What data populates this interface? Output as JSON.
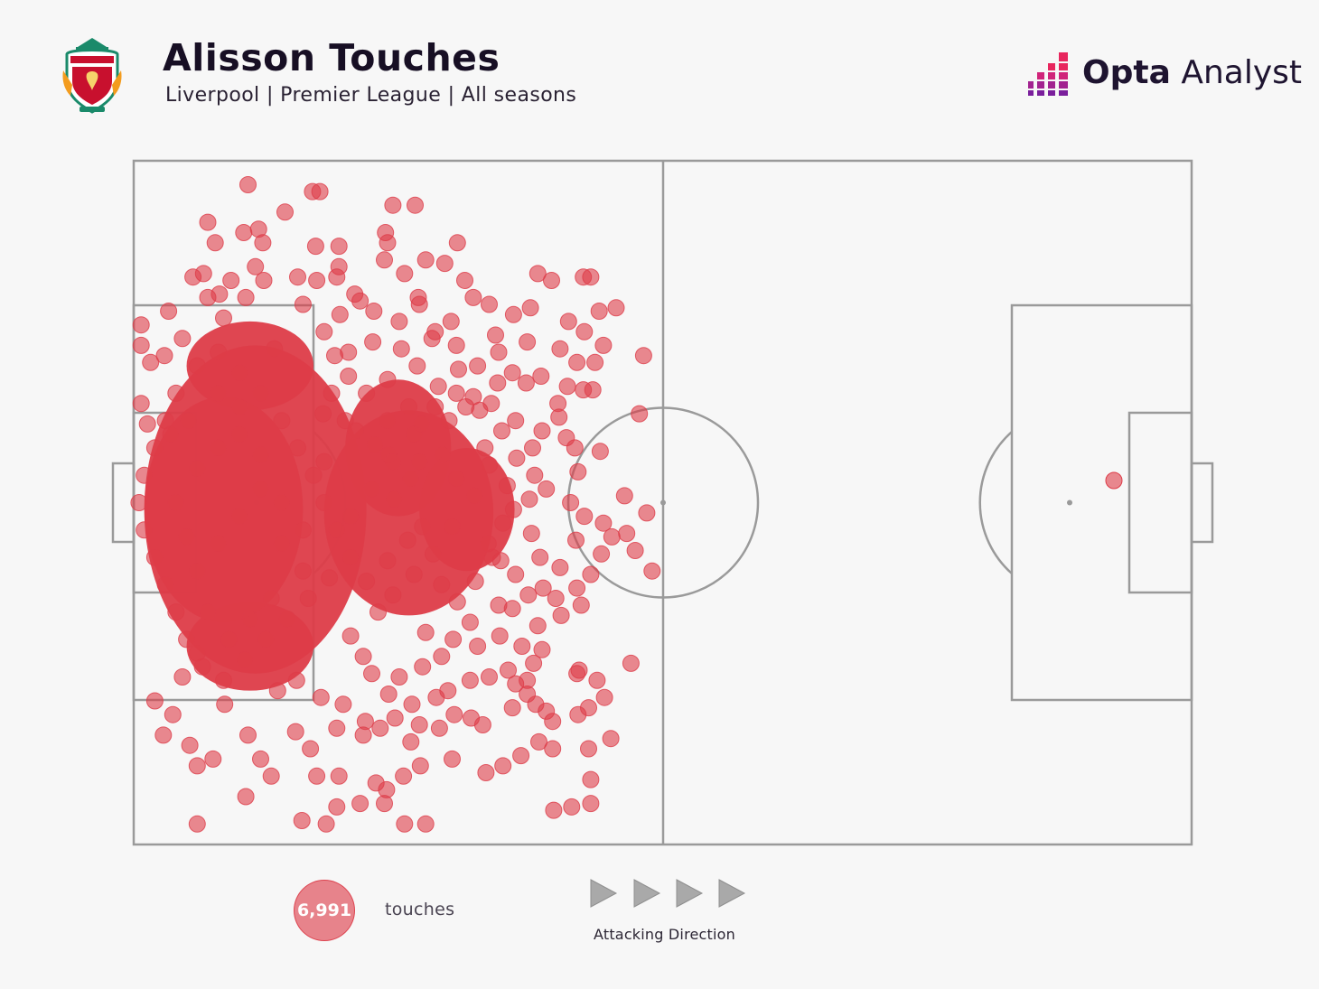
{
  "header": {
    "title": "Alisson Touches",
    "subtitle": "Liverpool | Premier League | All seasons",
    "crest_icon": "liverpool-crest-icon",
    "brand": {
      "bold": "Opta",
      "regular": " Analyst",
      "icon": "opta-bars-icon"
    }
  },
  "colors": {
    "touch": "#dd3c48",
    "pitch_line": "#9a9a9a",
    "background": "#f7f7f7",
    "brand_accent": "#e8265e"
  },
  "legend": {
    "count": "6,991",
    "count_label": "touches",
    "direction_label": "Attacking Direction",
    "direction_icon": "play-arrow-icon"
  },
  "chart_data": {
    "type": "scatter",
    "title": "Alisson Touches",
    "pitch": {
      "length": 100,
      "width": 100,
      "orientation": "horizontal",
      "attacking": "left-to-right"
    },
    "total_touches": 6991,
    "points": [
      [
        10.8,
        96.5
      ],
      [
        16.9,
        95.5
      ],
      [
        17.6,
        95.5
      ],
      [
        24.5,
        93.5
      ],
      [
        26.6,
        93.5
      ],
      [
        14.3,
        92.5
      ],
      [
        7.0,
        91.0
      ],
      [
        11.8,
        90.0
      ],
      [
        23.8,
        89.5
      ],
      [
        24.0,
        88.0
      ],
      [
        10.4,
        89.5
      ],
      [
        7.7,
        88.0
      ],
      [
        12.2,
        88.0
      ],
      [
        17.2,
        87.5
      ],
      [
        19.4,
        87.5
      ],
      [
        30.6,
        88.0
      ],
      [
        19.4,
        84.5
      ],
      [
        23.7,
        85.5
      ],
      [
        27.6,
        85.5
      ],
      [
        29.4,
        85.0
      ],
      [
        25.6,
        83.5
      ],
      [
        38.2,
        83.5
      ],
      [
        42.5,
        83.0
      ],
      [
        43.2,
        83.0
      ],
      [
        19.2,
        83.0
      ],
      [
        17.3,
        82.5
      ],
      [
        12.3,
        82.5
      ],
      [
        6.6,
        83.5
      ],
      [
        5.6,
        83.0
      ],
      [
        8.1,
        80.5
      ],
      [
        10.6,
        80.0
      ],
      [
        26.9,
        80.0
      ],
      [
        32.1,
        80.0
      ],
      [
        19.5,
        77.5
      ],
      [
        20.9,
        80.5
      ],
      [
        16.0,
        79.0
      ],
      [
        25.1,
        76.5
      ],
      [
        22.7,
        78.0
      ],
      [
        28.5,
        75.0
      ],
      [
        30.0,
        76.5
      ],
      [
        34.5,
        72.0
      ],
      [
        37.2,
        73.5
      ],
      [
        40.3,
        72.5
      ],
      [
        43.6,
        70.5
      ],
      [
        41.9,
        70.5
      ],
      [
        35.8,
        69.0
      ],
      [
        37.1,
        67.5
      ],
      [
        34.4,
        67.5
      ],
      [
        32.1,
        65.5
      ],
      [
        43.4,
        66.5
      ],
      [
        42.5,
        66.5
      ],
      [
        41.0,
        67.0
      ],
      [
        38.5,
        68.5
      ],
      [
        30.7,
        69.5
      ],
      [
        26.8,
        70.0
      ],
      [
        28.8,
        67.0
      ],
      [
        31.4,
        64.0
      ],
      [
        33.8,
        64.5
      ],
      [
        36.1,
        62.0
      ],
      [
        38.6,
        60.5
      ],
      [
        40.2,
        62.5
      ],
      [
        40.9,
        59.5
      ],
      [
        41.7,
        58.0
      ],
      [
        34.8,
        60.5
      ],
      [
        32.7,
        63.5
      ],
      [
        29.8,
        62.0
      ],
      [
        27.2,
        61.5
      ],
      [
        24.0,
        62.0
      ],
      [
        0.7,
        73.0
      ],
      [
        1.6,
        70.5
      ],
      [
        2.9,
        71.5
      ],
      [
        0.7,
        64.5
      ],
      [
        1.3,
        61.5
      ],
      [
        3.5,
        60.0
      ],
      [
        5.2,
        62.0
      ],
      [
        19.0,
        71.5
      ],
      [
        20.3,
        72.0
      ],
      [
        20.3,
        68.5
      ],
      [
        18.7,
        66.0
      ],
      [
        17.9,
        63.0
      ],
      [
        21.0,
        60.5
      ],
      [
        22.8,
        58.5
      ],
      [
        24.1,
        57.0
      ],
      [
        27.0,
        56.0
      ],
      [
        30.5,
        53.5
      ],
      [
        33.6,
        55.5
      ],
      [
        36.2,
        56.5
      ],
      [
        37.7,
        58.0
      ],
      [
        39.0,
        52.0
      ],
      [
        37.4,
        50.5
      ],
      [
        35.9,
        49.0
      ],
      [
        34.9,
        47.0
      ],
      [
        41.3,
        50.0
      ],
      [
        42.6,
        48.0
      ],
      [
        44.4,
        47.0
      ],
      [
        45.2,
        45.0
      ],
      [
        44.2,
        42.5
      ],
      [
        41.8,
        44.5
      ],
      [
        40.3,
        40.5
      ],
      [
        38.4,
        42.0
      ],
      [
        38.7,
        37.5
      ],
      [
        39.9,
        36.0
      ],
      [
        41.9,
        37.5
      ],
      [
        43.2,
        39.5
      ],
      [
        42.3,
        35.0
      ],
      [
        40.4,
        33.5
      ],
      [
        38.2,
        32.0
      ],
      [
        38.6,
        28.5
      ],
      [
        37.8,
        26.5
      ],
      [
        36.7,
        29.0
      ],
      [
        34.6,
        30.5
      ],
      [
        32.5,
        29.0
      ],
      [
        30.2,
        30.0
      ],
      [
        29.1,
        27.5
      ],
      [
        27.3,
        26.0
      ],
      [
        25.1,
        24.5
      ],
      [
        24.1,
        22.0
      ],
      [
        26.3,
        20.5
      ],
      [
        28.6,
        21.5
      ],
      [
        30.3,
        19.0
      ],
      [
        31.9,
        18.5
      ],
      [
        33.0,
        17.5
      ],
      [
        35.8,
        20.0
      ],
      [
        36.1,
        23.5
      ],
      [
        37.2,
        22.0
      ],
      [
        38.0,
        20.5
      ],
      [
        39.0,
        19.5
      ],
      [
        39.6,
        18.0
      ],
      [
        41.9,
        25.0
      ],
      [
        43.8,
        24.0
      ],
      [
        44.5,
        21.5
      ],
      [
        42.0,
        19.0
      ],
      [
        38.3,
        15.0
      ],
      [
        36.6,
        13.0
      ],
      [
        34.9,
        11.5
      ],
      [
        33.3,
        10.5
      ],
      [
        30.1,
        12.5
      ],
      [
        27.1,
        11.5
      ],
      [
        25.5,
        10.0
      ],
      [
        23.9,
        8.0
      ],
      [
        22.9,
        9.0
      ],
      [
        21.4,
        6.0
      ],
      [
        19.2,
        5.5
      ],
      [
        18.2,
        3.0
      ],
      [
        6.0,
        3.0
      ],
      [
        15.9,
        3.5
      ],
      [
        25.6,
        3.0
      ],
      [
        27.6,
        3.0
      ],
      [
        23.7,
        6.0
      ],
      [
        10.6,
        7.0
      ],
      [
        13.0,
        10.0
      ],
      [
        17.3,
        10.0
      ],
      [
        19.4,
        10.0
      ],
      [
        12.0,
        12.5
      ],
      [
        16.7,
        14.0
      ],
      [
        19.2,
        17.0
      ],
      [
        21.7,
        16.0
      ],
      [
        26.2,
        15.0
      ],
      [
        23.3,
        17.0
      ],
      [
        15.3,
        16.5
      ],
      [
        10.8,
        16.0
      ],
      [
        7.5,
        12.5
      ],
      [
        6.0,
        11.5
      ],
      [
        5.3,
        14.5
      ],
      [
        2.8,
        16.0
      ],
      [
        3.7,
        19.0
      ],
      [
        2.0,
        21.0
      ],
      [
        4.6,
        24.5
      ],
      [
        6.0,
        28.0
      ],
      [
        8.6,
        20.5
      ],
      [
        13.6,
        22.5
      ],
      [
        15.4,
        24.0
      ],
      [
        17.7,
        21.5
      ],
      [
        19.8,
        20.5
      ],
      [
        21.9,
        18.0
      ],
      [
        24.7,
        18.5
      ],
      [
        27.0,
        17.5
      ],
      [
        28.9,
        17.0
      ],
      [
        29.7,
        22.5
      ],
      [
        31.8,
        24.0
      ],
      [
        33.6,
        24.5
      ],
      [
        35.4,
        25.5
      ],
      [
        37.2,
        24.0
      ],
      [
        35.8,
        34.5
      ],
      [
        37.3,
        36.5
      ],
      [
        36.1,
        39.5
      ],
      [
        34.7,
        41.5
      ],
      [
        33.5,
        44.0
      ],
      [
        37.6,
        45.5
      ],
      [
        44.1,
        57.5
      ],
      [
        46.4,
        51.0
      ],
      [
        46.6,
        45.5
      ],
      [
        49.0,
        40.0
      ],
      [
        47.4,
        43.0
      ],
      [
        48.5,
        48.5
      ],
      [
        47.0,
        26.5
      ],
      [
        43.0,
        20.0
      ],
      [
        43.0,
        14.0
      ],
      [
        43.2,
        6.0
      ],
      [
        41.4,
        5.5
      ],
      [
        43.2,
        9.5
      ],
      [
        42.1,
        25.5
      ],
      [
        39.6,
        14.0
      ],
      [
        39.7,
        5.0
      ],
      [
        45.1,
        15.5
      ],
      [
        47.8,
        63.0
      ],
      [
        48.2,
        71.5
      ],
      [
        42.6,
        75.0
      ],
      [
        44.4,
        73.0
      ],
      [
        45.6,
        78.5
      ],
      [
        44.0,
        78.0
      ],
      [
        41.1,
        76.5
      ],
      [
        39.5,
        82.5
      ],
      [
        37.5,
        78.5
      ],
      [
        35.9,
        77.5
      ],
      [
        34.2,
        74.5
      ],
      [
        30.5,
        73.0
      ],
      [
        28.2,
        74.0
      ],
      [
        27.0,
        79.0
      ],
      [
        33.6,
        79.0
      ],
      [
        31.3,
        82.5
      ],
      [
        21.4,
        79.5
      ],
      [
        15.5,
        83.0
      ],
      [
        9.2,
        82.5
      ],
      [
        7.0,
        80.0
      ],
      [
        4.6,
        74.0
      ],
      [
        3.3,
        78.0
      ],
      [
        0.7,
        76.0
      ],
      [
        18.0,
        75.0
      ],
      [
        11.5,
        84.5
      ],
      [
        8.5,
        77.0
      ],
      [
        13.3,
        72.5
      ],
      [
        22.6,
        73.5
      ],
      [
        25.3,
        72.5
      ],
      [
        40.1,
        64.5
      ],
      [
        42.0,
        54.5
      ],
      [
        37.9,
        54.0
      ],
      [
        35.3,
        52.5
      ],
      [
        32.2,
        51.0
      ],
      [
        33.2,
        58.0
      ],
      [
        29.2,
        57.0
      ],
      [
        26.2,
        53.5
      ],
      [
        24.6,
        50.5
      ],
      [
        30.1,
        46.5
      ],
      [
        28.3,
        42.5
      ],
      [
        26.5,
        39.5
      ],
      [
        24.5,
        36.5
      ],
      [
        23.1,
        34.0
      ],
      [
        20.5,
        30.5
      ],
      [
        21.7,
        27.5
      ],
      [
        22.5,
        25.0
      ],
      [
        27.6,
        31.0
      ],
      [
        30.6,
        35.5
      ],
      [
        32.3,
        38.5
      ],
      [
        33.9,
        42.0
      ],
      [
        34.5,
        35.0
      ],
      [
        31.8,
        32.5
      ],
      [
        29.1,
        38.0
      ],
      [
        27.3,
        46.5
      ],
      [
        25.9,
        44.5
      ],
      [
        24.0,
        41.5
      ],
      [
        22.0,
        38.5
      ],
      [
        20.5,
        42.0
      ],
      [
        19.2,
        46.0
      ],
      [
        18.0,
        50.0
      ],
      [
        17.0,
        54.0
      ],
      [
        15.5,
        58.0
      ],
      [
        14.0,
        62.0
      ],
      [
        12.0,
        66.0
      ],
      [
        10.0,
        69.0
      ],
      [
        8.0,
        72.0
      ],
      [
        6.0,
        70.0
      ],
      [
        4.0,
        66.0
      ],
      [
        3.0,
        62.0
      ],
      [
        2.0,
        58.0
      ],
      [
        1.0,
        54.0
      ],
      [
        0.5,
        50.0
      ],
      [
        1.0,
        46.0
      ],
      [
        2.0,
        42.0
      ],
      [
        3.0,
        38.0
      ],
      [
        4.0,
        34.0
      ],
      [
        5.0,
        30.0
      ],
      [
        6.5,
        26.0
      ],
      [
        8.5,
        24.0
      ],
      [
        10.5,
        27.0
      ],
      [
        12.5,
        30.0
      ],
      [
        14.5,
        33.0
      ],
      [
        16.5,
        36.0
      ],
      [
        18.5,
        39.0
      ],
      [
        20.5,
        48.0
      ],
      [
        22.5,
        52.0
      ],
      [
        24.5,
        56.0
      ],
      [
        26.5,
        60.0
      ],
      [
        28.5,
        64.0
      ],
      [
        30.5,
        66.0
      ],
      [
        32.5,
        70.0
      ],
      [
        12.0,
        52.0
      ],
      [
        10.0,
        48.0
      ],
      [
        8.0,
        44.0
      ],
      [
        6.0,
        40.0
      ],
      [
        14.0,
        44.0
      ],
      [
        16.0,
        40.0
      ],
      [
        13.0,
        36.0
      ],
      [
        11.0,
        33.0
      ],
      [
        9.0,
        30.0
      ],
      [
        7.0,
        34.0
      ],
      [
        5.0,
        45.0
      ],
      [
        4.0,
        50.0
      ],
      [
        6.0,
        55.0
      ],
      [
        8.0,
        58.0
      ],
      [
        10.0,
        60.0
      ],
      [
        12.0,
        57.0
      ],
      [
        14.0,
        50.0
      ],
      [
        16.0,
        46.0
      ],
      [
        18.0,
        56.0
      ],
      [
        20.0,
        62.0
      ],
      [
        22.0,
        66.0
      ],
      [
        24.0,
        68.0
      ],
      [
        26.0,
        64.0
      ],
      [
        10.0,
        64.0
      ],
      [
        8.0,
        66.0
      ]
    ],
    "dense_regions": [
      {
        "shape": "ellipse",
        "cx": 11.5,
        "cy": 49.0,
        "rx": 10.5,
        "ry": 24.0
      },
      {
        "shape": "ellipse",
        "cx": 11.0,
        "cy": 70.0,
        "rx": 6.0,
        "ry": 6.5
      },
      {
        "shape": "ellipse",
        "cx": 11.0,
        "cy": 29.0,
        "rx": 6.0,
        "ry": 6.5
      },
      {
        "shape": "ellipse",
        "cx": 8.5,
        "cy": 49.0,
        "rx": 7.5,
        "ry": 16.5
      },
      {
        "shape": "ellipse",
        "cx": 26.0,
        "cy": 48.5,
        "rx": 8.0,
        "ry": 15.0
      },
      {
        "shape": "ellipse",
        "cx": 25.0,
        "cy": 58.0,
        "rx": 5.0,
        "ry": 10.0
      },
      {
        "shape": "ellipse",
        "cx": 31.5,
        "cy": 49.0,
        "rx": 4.5,
        "ry": 9.0
      }
    ]
  }
}
